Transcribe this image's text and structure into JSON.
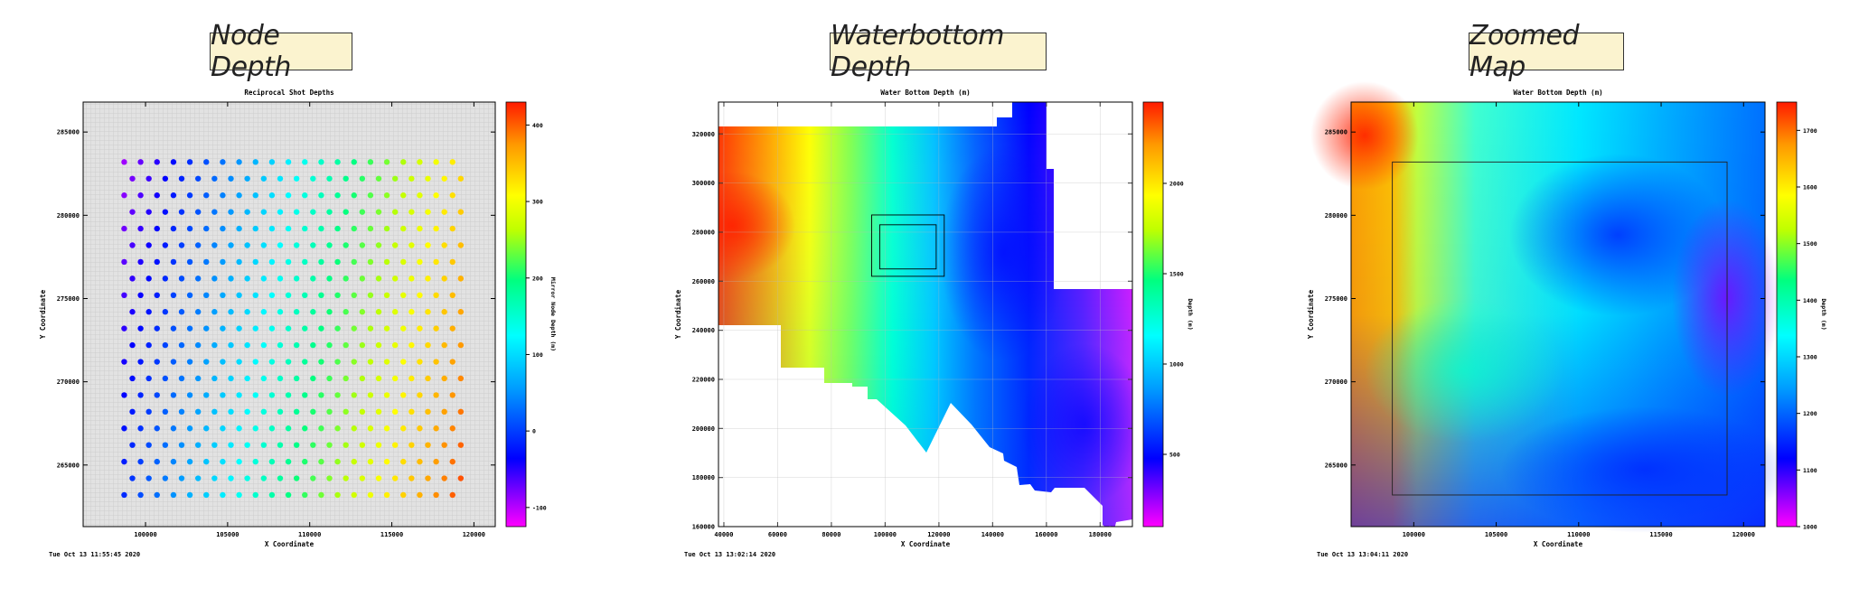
{
  "banners": [
    "Node Depth",
    "Waterbottom Depth",
    "Zoomed Map"
  ],
  "chart_data": [
    {
      "type": "scatter",
      "title": "Reciprocal Shot Depths",
      "xlabel": "X Coordinate",
      "ylabel": "Y Coordinate",
      "xlim": [
        96200,
        121300
      ],
      "ylim": [
        261300,
        286800
      ],
      "xticks": [
        "100000",
        "105000",
        "110000",
        "115000",
        "120000"
      ],
      "xtick_values": [
        100000,
        105000,
        110000,
        115000,
        120000
      ],
      "yticks": [
        "265000",
        "270000",
        "275000",
        "280000",
        "285000"
      ],
      "ytick_values": [
        265000,
        270000,
        275000,
        280000,
        285000
      ],
      "grid": true,
      "timestamp": "Tue Oct 13 11:55:45 2020",
      "colorbar": {
        "label": "Mirror Node Depth (m)",
        "ticks": [
          "-100",
          "0",
          "100",
          "200",
          "300",
          "400"
        ],
        "tick_values": [
          -100,
          0,
          100,
          200,
          300,
          400
        ],
        "range": [
          -125,
          430
        ]
      },
      "point_grid": {
        "x_start": 98700,
        "x_step": 500,
        "columns": 21,
        "y_start": 263200,
        "y_step": 1000,
        "rows": 21,
        "odd_row_x_offset": 500,
        "depth_min": -50,
        "depth_max": 430
      }
    },
    {
      "type": "heatmap",
      "title": "Water Bottom Depth (m)",
      "xlabel": "X Coordinate",
      "ylabel": "Y Coordinate",
      "xlim": [
        38000,
        192000
      ],
      "ylim": [
        160000,
        333000
      ],
      "xticks": [
        "40000",
        "60000",
        "80000",
        "100000",
        "120000",
        "140000",
        "160000",
        "180000"
      ],
      "xtick_values": [
        40000,
        60000,
        80000,
        100000,
        120000,
        140000,
        160000,
        180000
      ],
      "yticks": [
        "160000",
        "180000",
        "200000",
        "220000",
        "240000",
        "260000",
        "280000",
        "300000",
        "320000"
      ],
      "ytick_values": [
        160000,
        180000,
        200000,
        220000,
        240000,
        260000,
        280000,
        300000,
        320000
      ],
      "grid": true,
      "timestamp": "Tue Oct 13 13:02:14 2020",
      "colorbar": {
        "label": "Depth (m)",
        "ticks": [
          "500",
          "1000",
          "1500",
          "2000"
        ],
        "tick_values": [
          500,
          1000,
          1500,
          2000
        ],
        "range": [
          100,
          2450
        ]
      },
      "inset_boxes": [
        {
          "x": [
            95000,
            122000
          ],
          "y": [
            262000,
            287000
          ]
        },
        {
          "x": [
            98000,
            119000
          ],
          "y": [
            265000,
            283000
          ]
        }
      ]
    },
    {
      "type": "heatmap",
      "title": "Water Bottom Depth (m)",
      "xlabel": "X Coordinate",
      "ylabel": "Y Coordinate",
      "xlim": [
        96200,
        121300
      ],
      "ylim": [
        261300,
        286800
      ],
      "xticks": [
        "100000",
        "105000",
        "110000",
        "115000",
        "120000"
      ],
      "xtick_values": [
        100000,
        105000,
        110000,
        115000,
        120000
      ],
      "yticks": [
        "265000",
        "270000",
        "275000",
        "280000",
        "285000"
      ],
      "ytick_values": [
        265000,
        270000,
        275000,
        280000,
        285000
      ],
      "grid": true,
      "timestamp": "Tue Oct 13 13:04:11 2020",
      "colorbar": {
        "label": "Depth (m)",
        "ticks": [
          "1000",
          "1100",
          "1200",
          "1300",
          "1400",
          "1500",
          "1600",
          "1700"
        ],
        "tick_values": [
          1000,
          1100,
          1200,
          1300,
          1400,
          1500,
          1600,
          1700
        ],
        "range": [
          1000,
          1750
        ]
      },
      "inset_boxes": [
        {
          "x": [
            98700,
            119000
          ],
          "y": [
            263200,
            283200
          ]
        }
      ]
    }
  ]
}
